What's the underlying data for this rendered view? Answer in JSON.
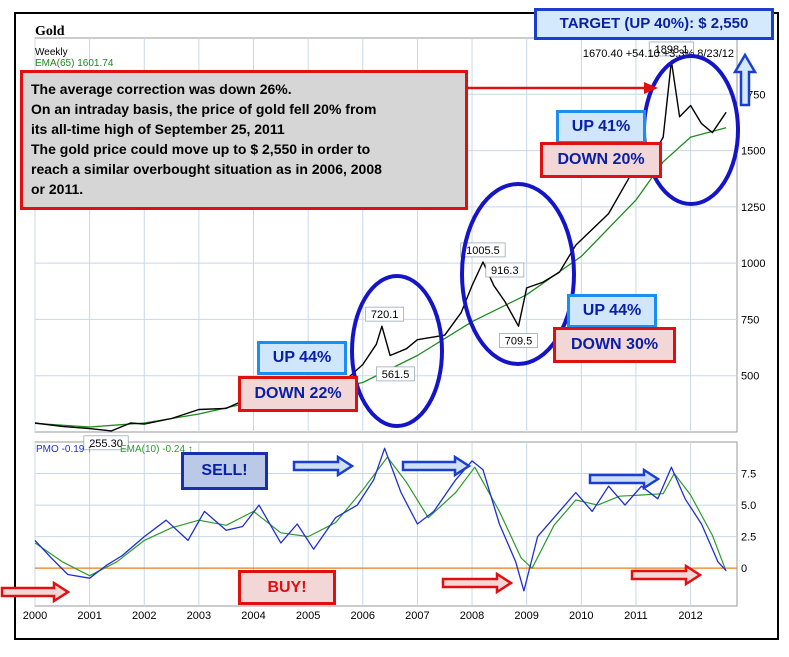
{
  "chart_data": [
    {
      "type": "line",
      "title": "Gold",
      "subtitle": "Weekly",
      "ema_legend": "EMA(65) 1601.74",
      "quote": "1670.40 +54.10 +3.3% 8/23/12",
      "ylim": [
        250,
        2000
      ],
      "y_ticks": [
        500,
        750,
        1000,
        1250,
        1500,
        1750
      ],
      "grid": true,
      "series": [
        {
          "name": "Gold",
          "color": "#000000",
          "x": [
            2000.0,
            2000.5,
            2001.0,
            2001.4,
            2001.75,
            2002.0,
            2002.5,
            2003.0,
            2003.5,
            2004.0,
            2004.5,
            2005.0,
            2005.5,
            2006.0,
            2006.25,
            2006.35,
            2006.5,
            2006.8,
            2007.0,
            2007.5,
            2007.8,
            2008.0,
            2008.2,
            2008.4,
            2008.6,
            2008.85,
            2009.0,
            2009.3,
            2009.6,
            2009.9,
            2010.2,
            2010.5,
            2010.9,
            2011.2,
            2011.5,
            2011.65,
            2011.8,
            2012.0,
            2012.2,
            2012.4,
            2012.65
          ],
          "y": [
            290,
            275,
            265,
            255,
            290,
            285,
            310,
            350,
            355,
            410,
            400,
            425,
            440,
            550,
            640,
            720,
            590,
            620,
            660,
            680,
            780,
            900,
            1005,
            900,
            830,
            720,
            890,
            916,
            960,
            1080,
            1150,
            1220,
            1390,
            1430,
            1560,
            1898,
            1650,
            1700,
            1620,
            1580,
            1670
          ]
        },
        {
          "name": "EMA(65)",
          "color": "#1e8a1e",
          "x": [
            2000.0,
            2001.0,
            2002.0,
            2003.0,
            2004.0,
            2005.0,
            2006.0,
            2007.0,
            2008.0,
            2009.0,
            2010.0,
            2011.0,
            2011.5,
            2012.0,
            2012.65
          ],
          "y": [
            288,
            272,
            290,
            330,
            385,
            420,
            470,
            590,
            740,
            860,
            1030,
            1280,
            1450,
            1560,
            1601
          ]
        }
      ],
      "point_labels": [
        {
          "x": 2001.3,
          "y": 255.3,
          "text": "255.30"
        },
        {
          "x": 2006.4,
          "y": 720.1,
          "text": "720.1"
        },
        {
          "x": 2006.6,
          "y": 561.5,
          "text": "561.5"
        },
        {
          "x": 2008.2,
          "y": 1005.5,
          "text": "1005.5"
        },
        {
          "x": 2008.6,
          "y": 916.3,
          "text": "916.3"
        },
        {
          "x": 2008.85,
          "y": 709.5,
          "text": "709.5"
        },
        {
          "x": 2011.65,
          "y": 1898,
          "text": "1898.1"
        }
      ]
    },
    {
      "type": "line",
      "title": "PMO -0.19",
      "ema_legend": "EMA(10) -0.24",
      "ylim": [
        -3,
        10
      ],
      "y_ticks": [
        0,
        2.5,
        5.0,
        7.5
      ],
      "grid": true,
      "x_ticks": [
        "2000",
        "2001",
        "2002",
        "2003",
        "2004",
        "2005",
        "2006",
        "2007",
        "2008",
        "2009",
        "2010",
        "2011",
        "2012"
      ],
      "series": [
        {
          "name": "PMO",
          "color": "#1f2fd0",
          "x": [
            2000.0,
            2000.3,
            2000.6,
            2001.0,
            2001.3,
            2001.6,
            2002.0,
            2002.4,
            2002.8,
            2003.1,
            2003.5,
            2003.8,
            2004.1,
            2004.5,
            2004.8,
            2005.1,
            2005.5,
            2005.9,
            2006.2,
            2006.4,
            2006.7,
            2007.0,
            2007.3,
            2007.7,
            2008.0,
            2008.2,
            2008.5,
            2008.8,
            2008.95,
            2009.2,
            2009.5,
            2009.9,
            2010.2,
            2010.5,
            2010.8,
            2011.1,
            2011.4,
            2011.65,
            2011.9,
            2012.2,
            2012.5,
            2012.65
          ],
          "y": [
            2.2,
            0.8,
            -0.5,
            -0.8,
            0.2,
            1.0,
            2.5,
            3.8,
            2.2,
            4.5,
            3.0,
            3.3,
            5.0,
            2.0,
            3.5,
            1.5,
            4.0,
            5.0,
            7.0,
            9.5,
            6.0,
            3.5,
            4.5,
            7.0,
            8.5,
            7.8,
            3.5,
            0.5,
            -1.8,
            2.5,
            4.0,
            6.0,
            4.5,
            6.5,
            5.0,
            6.5,
            5.5,
            8.0,
            5.5,
            3.5,
            0.5,
            -0.19
          ]
        },
        {
          "name": "EMA(10)",
          "color": "#2e9a2e",
          "x": [
            2000.0,
            2000.5,
            2001.0,
            2001.5,
            2002.0,
            2002.5,
            2003.0,
            2003.5,
            2004.0,
            2004.5,
            2005.0,
            2005.5,
            2006.0,
            2006.45,
            2006.8,
            2007.2,
            2007.7,
            2008.05,
            2008.5,
            2008.9,
            2009.1,
            2009.5,
            2009.9,
            2010.3,
            2010.7,
            2011.1,
            2011.5,
            2011.7,
            2012.0,
            2012.4,
            2012.65
          ],
          "y": [
            2.0,
            0.5,
            -0.6,
            0.5,
            2.2,
            3.2,
            3.8,
            3.4,
            4.5,
            2.8,
            2.5,
            3.6,
            6.2,
            8.8,
            6.8,
            4.0,
            6.0,
            8.0,
            4.5,
            0.8,
            0.0,
            3.4,
            5.4,
            5.0,
            5.7,
            5.8,
            5.9,
            7.5,
            5.8,
            2.6,
            -0.24
          ]
        }
      ]
    }
  ],
  "annotations": {
    "note_lines": [
      "The average correction was down 26%.",
      "On an intraday basis, the price of gold fell 20% from",
      "its all-time high of September 25, 2011",
      "The gold price could move up to $ 2,550 in order to",
      "reach a similar overbought situation as in 2006, 2008",
      "or 2011."
    ],
    "target": "TARGET (UP 40%): $ 2,550",
    "up_2005": "UP 44%",
    "down_2005": "DOWN 22%",
    "up_2009": "UP 44%",
    "down_2009": "DOWN 30%",
    "up_2011": "UP 41%",
    "down_2011": "DOWN 20%",
    "sell": "SELL!",
    "buy": "BUY!"
  },
  "colors": {
    "price": "#000000",
    "ema_price": "#1e8a1e",
    "pmo": "#1f2fd0",
    "pmo_ema": "#2e9a2e",
    "circle": "#1515c8",
    "red": "#e01010",
    "blue": "#1a3fd0",
    "zero_line": "#f07b1a"
  }
}
